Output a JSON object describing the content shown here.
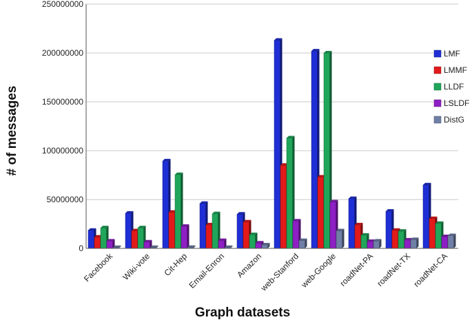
{
  "chart_data": {
    "type": "bar",
    "title": "",
    "xlabel": "Graph datasets",
    "ylabel": "# of messages",
    "ylim": [
      0,
      250000000
    ],
    "yticks": [
      0,
      50000000,
      100000000,
      150000000,
      200000000,
      250000000
    ],
    "grid": "horizontal",
    "legend_position": "right",
    "categories": [
      "Facebook",
      "Wiki-vote",
      "Cit-Hep",
      "Email-Enron",
      "Amazon",
      "web-Stanford",
      "web-Google",
      "roadNet-PA",
      "roadNet-TX",
      "roadNet-CA"
    ],
    "series": [
      {
        "name": "LMF",
        "color": "#1f2fd6",
        "values": [
          18500000,
          36000000,
          89500000,
          46000000,
          35000000,
          213000000,
          202000000,
          51000000,
          38000000,
          65000000
        ]
      },
      {
        "name": "LMMF",
        "color": "#e31a1a",
        "values": [
          11500000,
          18000000,
          37000000,
          24000000,
          27000000,
          85000000,
          73000000,
          24000000,
          18500000,
          30500000
        ]
      },
      {
        "name": "LLDF",
        "color": "#1fa65a",
        "values": [
          21000000,
          21000000,
          75500000,
          35500000,
          14000000,
          113000000,
          200000000,
          13500000,
          17500000,
          25500000
        ]
      },
      {
        "name": "LSLDF",
        "color": "#8e1fc4",
        "values": [
          7500000,
          6500000,
          22500000,
          8000000,
          5500000,
          28000000,
          47500000,
          7000000,
          8500000,
          12000000
        ]
      },
      {
        "name": "DistG",
        "color": "#6f7fa6",
        "values": [
          900000,
          900000,
          1000000,
          900000,
          3500000,
          8000000,
          18000000,
          7500000,
          9000000,
          13000000
        ]
      }
    ]
  }
}
